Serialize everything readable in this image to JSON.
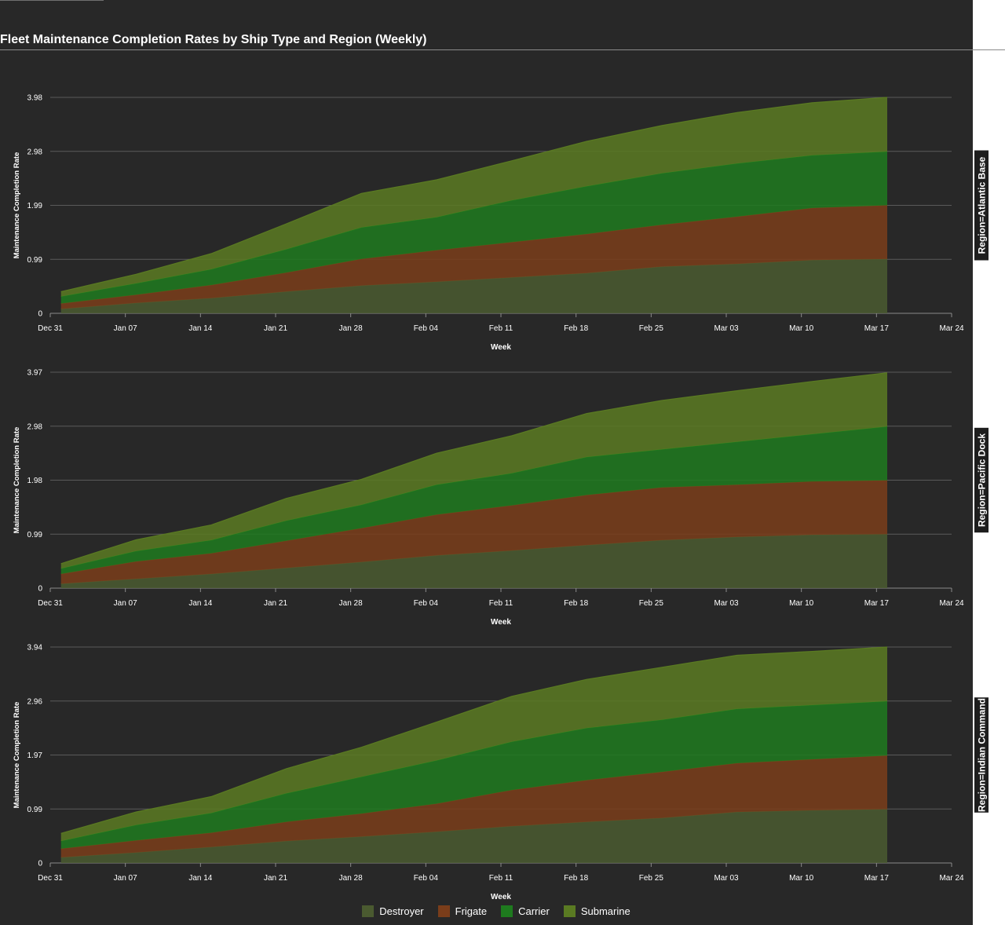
{
  "title": "Fleet Maintenance Completion Rates by Ship Type and Region (Weekly)",
  "colors": {
    "background": "#282828",
    "grid": "#5a5a5a",
    "text": "#ffffff",
    "Destroyer": "#4a5a30",
    "Frigate": "#7a3d1a",
    "Carrier": "#1e7a1e",
    "Submarine": "#5a7a22"
  },
  "legend": [
    {
      "name": "Destroyer",
      "color": "#4a5a30"
    },
    {
      "name": "Frigate",
      "color": "#7a3d1a"
    },
    {
      "name": "Carrier",
      "color": "#1e7a1e"
    },
    {
      "name": "Submarine",
      "color": "#5a7a22"
    }
  ],
  "chart_data": [
    {
      "type": "area",
      "stacked": true,
      "facet_label": "Region=Atlantic Base",
      "xlabel": "Week",
      "ylabel": "Maintenance Completion Rate",
      "x_tick_labels": [
        "Dec 31",
        "Jan 07",
        "Jan 14",
        "Jan 21",
        "Jan 28",
        "Feb 04",
        "Feb 11",
        "Feb 18",
        "Feb 25",
        "Mar 03",
        "Mar 10",
        "Mar 17",
        "Mar 24"
      ],
      "y_tick_labels": [
        "0",
        "0.99",
        "1.99",
        "2.98",
        "3.98"
      ],
      "ylim": [
        0,
        3.98
      ],
      "x": [
        "2024-01-01",
        "2024-01-08",
        "2024-01-15",
        "2024-01-22",
        "2024-01-29",
        "2024-02-05",
        "2024-02-12",
        "2024-02-19",
        "2024-02-26",
        "2024-03-04",
        "2024-03-11",
        "2024-03-18"
      ],
      "series": [
        {
          "name": "Destroyer",
          "values": [
            0.08,
            0.19,
            0.28,
            0.4,
            0.51,
            0.58,
            0.66,
            0.74,
            0.86,
            0.91,
            0.98,
            1.0
          ]
        },
        {
          "name": "Frigate",
          "values": [
            0.1,
            0.15,
            0.24,
            0.35,
            0.49,
            0.58,
            0.65,
            0.72,
            0.77,
            0.87,
            0.96,
            0.99
          ]
        },
        {
          "name": "Carrier",
          "values": [
            0.13,
            0.21,
            0.29,
            0.43,
            0.58,
            0.61,
            0.77,
            0.88,
            0.95,
            0.98,
            0.97,
            0.99
          ]
        },
        {
          "name": "Submarine",
          "values": [
            0.09,
            0.17,
            0.29,
            0.47,
            0.63,
            0.69,
            0.73,
            0.83,
            0.88,
            0.94,
            0.97,
            1.0
          ]
        }
      ]
    },
    {
      "type": "area",
      "stacked": true,
      "facet_label": "Region=Pacific Dock",
      "xlabel": "Week",
      "ylabel": "Maintenance Completion Rate",
      "x_tick_labels": [
        "Dec 31",
        "Jan 07",
        "Jan 14",
        "Jan 21",
        "Jan 28",
        "Feb 04",
        "Feb 11",
        "Feb 18",
        "Feb 25",
        "Mar 03",
        "Mar 10",
        "Mar 17",
        "Mar 24"
      ],
      "y_tick_labels": [
        "0",
        "0.99",
        "1.98",
        "2.98",
        "3.97"
      ],
      "ylim": [
        0,
        3.97
      ],
      "x": [
        "2024-01-01",
        "2024-01-08",
        "2024-01-15",
        "2024-01-22",
        "2024-01-29",
        "2024-02-05",
        "2024-02-12",
        "2024-02-19",
        "2024-02-26",
        "2024-03-04",
        "2024-03-11",
        "2024-03-18"
      ],
      "series": [
        {
          "name": "Destroyer",
          "values": [
            0.08,
            0.17,
            0.26,
            0.37,
            0.48,
            0.6,
            0.69,
            0.79,
            0.88,
            0.94,
            0.98,
            0.99
          ]
        },
        {
          "name": "Frigate",
          "values": [
            0.18,
            0.32,
            0.38,
            0.5,
            0.62,
            0.75,
            0.83,
            0.92,
            0.97,
            0.96,
            0.98,
            0.99
          ]
        },
        {
          "name": "Carrier",
          "values": [
            0.1,
            0.19,
            0.24,
            0.37,
            0.43,
            0.55,
            0.59,
            0.7,
            0.7,
            0.79,
            0.87,
            0.99
          ]
        },
        {
          "name": "Submarine",
          "values": [
            0.09,
            0.21,
            0.28,
            0.41,
            0.47,
            0.58,
            0.69,
            0.8,
            0.9,
            0.94,
            0.97,
            0.99
          ]
        }
      ]
    },
    {
      "type": "area",
      "stacked": true,
      "facet_label": "Region=Indian Command",
      "xlabel": "Week",
      "ylabel": "Maintenance Completion Rate",
      "x_tick_labels": [
        "Dec 31",
        "Jan 07",
        "Jan 14",
        "Jan 21",
        "Jan 28",
        "Feb 04",
        "Feb 11",
        "Feb 18",
        "Feb 25",
        "Mar 03",
        "Mar 10",
        "Mar 17",
        "Mar 24"
      ],
      "y_tick_labels": [
        "0",
        "0.99",
        "1.97",
        "2.96",
        "3.94"
      ],
      "ylim": [
        0,
        3.94
      ],
      "x": [
        "2024-01-01",
        "2024-01-08",
        "2024-01-15",
        "2024-01-22",
        "2024-01-29",
        "2024-02-05",
        "2024-02-12",
        "2024-02-19",
        "2024-02-26",
        "2024-03-04",
        "2024-03-11",
        "2024-03-18"
      ],
      "series": [
        {
          "name": "Destroyer",
          "values": [
            0.1,
            0.19,
            0.29,
            0.4,
            0.48,
            0.57,
            0.67,
            0.75,
            0.82,
            0.93,
            0.96,
            0.98
          ]
        },
        {
          "name": "Frigate",
          "values": [
            0.16,
            0.22,
            0.26,
            0.35,
            0.42,
            0.51,
            0.66,
            0.76,
            0.84,
            0.89,
            0.93,
            0.98
          ]
        },
        {
          "name": "Carrier",
          "values": [
            0.14,
            0.28,
            0.36,
            0.52,
            0.67,
            0.79,
            0.88,
            0.95,
            0.95,
            0.99,
            0.99,
            0.99
          ]
        },
        {
          "name": "Submarine",
          "values": [
            0.14,
            0.24,
            0.3,
            0.45,
            0.54,
            0.7,
            0.83,
            0.89,
            0.96,
            0.98,
            0.98,
            0.99
          ]
        }
      ]
    }
  ]
}
